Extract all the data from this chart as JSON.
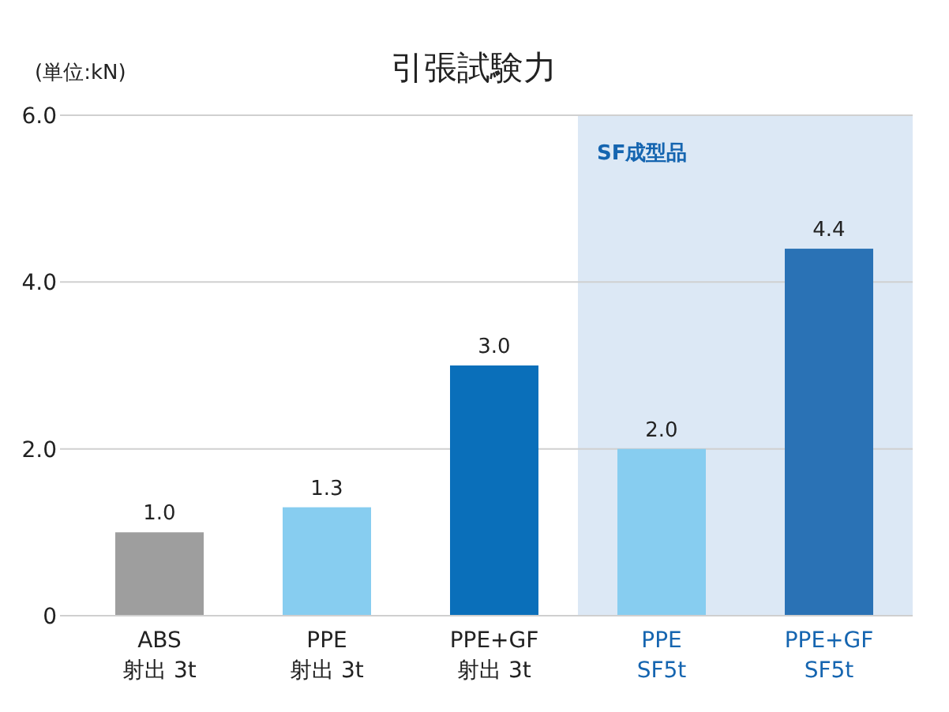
{
  "chart_data": {
    "type": "bar",
    "title": "引張試験力",
    "ylabel": "(単位:kN)",
    "categories": [
      "ABS\n射出 3t",
      "PPE\n射出 3t",
      "PPE+GF\n射出 3t",
      "PPE\nSF5t",
      "PPE+GF\nSF5t"
    ],
    "values": [
      1.0,
      1.3,
      3.0,
      2.0,
      4.4
    ],
    "colors": [
      "#9e9e9e",
      "#87cdf0",
      "#0a6fba",
      "#87cdf0",
      "#2a72b5"
    ],
    "value_labels": [
      "1.0",
      "1.3",
      "3.0",
      "2.0",
      "4.4"
    ],
    "ylim": [
      0,
      6
    ],
    "yticks": [
      0,
      {
        "value": 2,
        "label": "2.0"
      },
      {
        "value": 4,
        "label": "4.0"
      },
      {
        "value": 6,
        "label": "6.0"
      }
    ],
    "grid": "y",
    "bands": [
      {
        "axis": "x",
        "from": "PPE\nSF5t",
        "to": "PPE+GF\nSF5t",
        "label": "SF成型品",
        "color": "#dce8f5"
      }
    ]
  }
}
